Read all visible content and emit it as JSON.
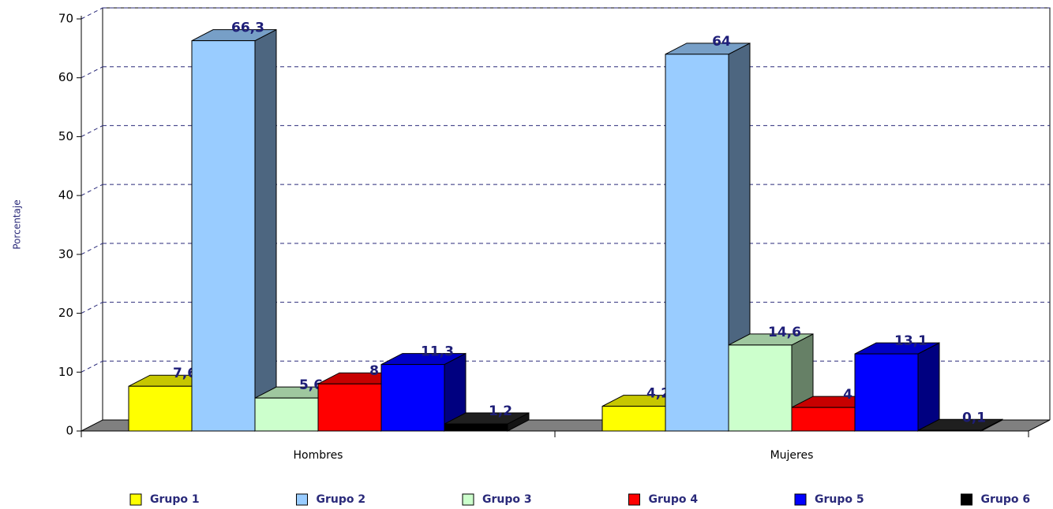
{
  "chart_data": {
    "type": "bar3d",
    "y_label": "Porcentaje",
    "categories": [
      "Hombres",
      "Mujeres"
    ],
    "series": [
      {
        "name": "Grupo 1",
        "color": "#ffff00",
        "values": [
          7.6,
          4.2
        ],
        "value_labels": [
          "7,6",
          "4,2"
        ]
      },
      {
        "name": "Grupo 2",
        "color": "#99ccff",
        "values": [
          66.3,
          64
        ],
        "value_labels": [
          "66,3",
          "64"
        ]
      },
      {
        "name": "Grupo 3",
        "color": "#ccffcc",
        "values": [
          5.6,
          14.6
        ],
        "value_labels": [
          "5,6",
          "14,6"
        ]
      },
      {
        "name": "Grupo 4",
        "color": "#ff0000",
        "values": [
          8,
          4
        ],
        "value_labels": [
          "8",
          "4"
        ]
      },
      {
        "name": "Grupo 5",
        "color": "#0000ff",
        "values": [
          11.3,
          13.1
        ],
        "value_labels": [
          "11,3",
          "13,1"
        ]
      },
      {
        "name": "Grupo 6",
        "color": "#000000",
        "values": [
          1.2,
          0.1
        ],
        "value_labels": [
          "1,2",
          "0,1"
        ]
      }
    ],
    "ylim": [
      0,
      70
    ],
    "yticks": [
      0,
      10,
      20,
      30,
      40,
      50,
      60,
      70
    ],
    "grid": true
  }
}
